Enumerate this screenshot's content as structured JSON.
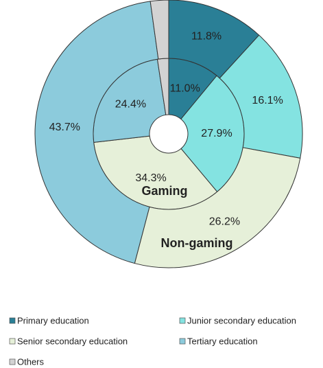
{
  "chart_data": {
    "type": "donut",
    "categories": [
      "Primary education",
      "Junior secondary education",
      "Senior secondary education",
      "Tertiary education",
      "Others"
    ],
    "colors": [
      "#2a7f96",
      "#84e3e1",
      "#e6f0d9",
      "#8ccbdc",
      "#d3d3d3"
    ],
    "series": [
      {
        "name": "Gaming",
        "values": [
          11.0,
          27.9,
          34.3,
          24.4,
          2.4
        ],
        "value_labels": [
          "11.0%",
          "27.9%",
          "34.3%",
          "24.4%",
          null
        ]
      },
      {
        "name": "Non-gaming",
        "values": [
          11.8,
          16.1,
          26.2,
          43.7,
          2.2
        ],
        "value_labels": [
          "11.8%",
          "16.1%",
          "26.2%",
          "43.7%",
          null
        ]
      }
    ],
    "legend": "bottom"
  }
}
